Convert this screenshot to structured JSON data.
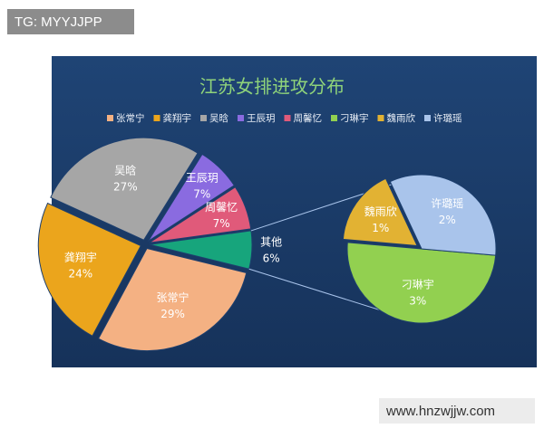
{
  "watermarks": [
    "TG: MYYJJPP",
    "www.hnzwjjw.com"
  ],
  "chart_data": {
    "type": "pie-of-pie",
    "title": "江苏女排进攻分布",
    "categories": [
      "张常宁",
      "龚翔宇",
      "吴晗",
      "王辰玥",
      "周馨忆"
    ],
    "values": [
      29,
      24,
      27,
      7,
      7
    ],
    "value_labels": [
      "29%",
      "24%",
      "27%",
      "7%",
      "7%"
    ],
    "colors": [
      "#f4b183",
      "#eba51c",
      "#a6a6a6",
      "#8a6be0",
      "#e05a7a"
    ],
    "other": {
      "label": "其他",
      "value": 6,
      "value_label": "6%",
      "color": "#17a57c"
    },
    "sub": {
      "categories": [
        "刁琳宇",
        "魏雨欣",
        "许璐瑶"
      ],
      "values": [
        3,
        1,
        2
      ],
      "value_labels": [
        "3%",
        "1%",
        "2%"
      ],
      "colors": [
        "#92d050",
        "#e2b233",
        "#a9c4eb"
      ]
    }
  }
}
